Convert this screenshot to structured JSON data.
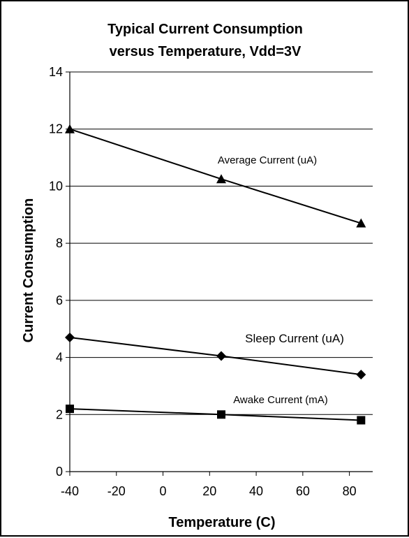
{
  "chart_data": {
    "type": "line",
    "title": "Typical Current Consumption versus Temperature, Vdd=3V",
    "title_lines": [
      "Typical Current Consumption",
      "versus Temperature, Vdd=3V"
    ],
    "xlabel": "Temperature (C)",
    "ylabel": "Current Consumption",
    "xlim": [
      -40,
      90
    ],
    "ylim": [
      0,
      14
    ],
    "x_ticks": [
      -40,
      -20,
      0,
      20,
      40,
      60,
      80
    ],
    "y_ticks": [
      0,
      2,
      4,
      6,
      8,
      10,
      12,
      14
    ],
    "grid": "horizontal",
    "legend": "none",
    "x": [
      -40,
      25,
      85
    ],
    "series": [
      {
        "name": "Average Current (uA)",
        "marker": "triangle",
        "values": [
          12.0,
          10.25,
          8.7
        ]
      },
      {
        "name": "Sleep Current (uA)",
        "marker": "diamond",
        "values": [
          4.7,
          4.05,
          3.4
        ]
      },
      {
        "name": "Awake Current (mA)",
        "marker": "square",
        "values": [
          2.2,
          2.0,
          1.8
        ]
      }
    ]
  }
}
